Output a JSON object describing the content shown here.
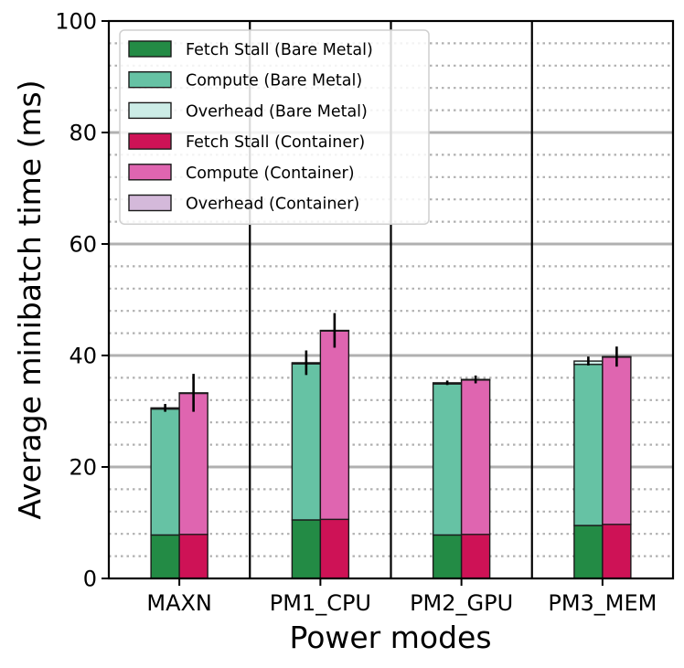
{
  "chart_data": {
    "type": "bar",
    "stacked": true,
    "grouped": true,
    "title": "",
    "xlabel": "Power modes",
    "ylabel": "Average minibatch time (ms)",
    "ylim": [
      0,
      100
    ],
    "yticks": [
      0,
      20,
      40,
      60,
      80,
      100
    ],
    "categories": [
      "MAXN",
      "PM1_CPU",
      "PM2_GPU",
      "PM3_MEM"
    ],
    "groups": [
      {
        "name": "Bare Metal",
        "components": [
          {
            "name": "Fetch Stall (Bare Metal)",
            "color": "#238b45",
            "values": [
              7.8,
              10.5,
              7.8,
              9.5
            ]
          },
          {
            "name": "Compute (Bare Metal)",
            "color": "#66c2a4",
            "values": [
              22.6,
              28.0,
              27.1,
              28.9
            ]
          },
          {
            "name": "Overhead (Bare Metal)",
            "color": "#ccece6",
            "values": [
              0.2,
              0.2,
              0.2,
              0.6
            ]
          }
        ],
        "error": [
          0.7,
          2.2,
          0.4,
          0.8
        ]
      },
      {
        "name": "Container",
        "components": [
          {
            "name": "Fetch Stall (Container)",
            "color": "#ce1256",
            "values": [
              7.9,
              10.6,
              7.9,
              9.7
            ]
          },
          {
            "name": "Compute (Container)",
            "color": "#df65b0",
            "values": [
              25.3,
              33.8,
              27.7,
              30.0
            ]
          },
          {
            "name": "Overhead (Container)",
            "color": "#d4b9da",
            "values": [
              0.1,
              0.1,
              0.1,
              0.1
            ]
          }
        ],
        "error": [
          3.4,
          3.1,
          0.7,
          1.8
        ]
      }
    ],
    "legend_position": "top-left",
    "grid": {
      "major_y": true,
      "minor_y_dotted": true
    }
  }
}
